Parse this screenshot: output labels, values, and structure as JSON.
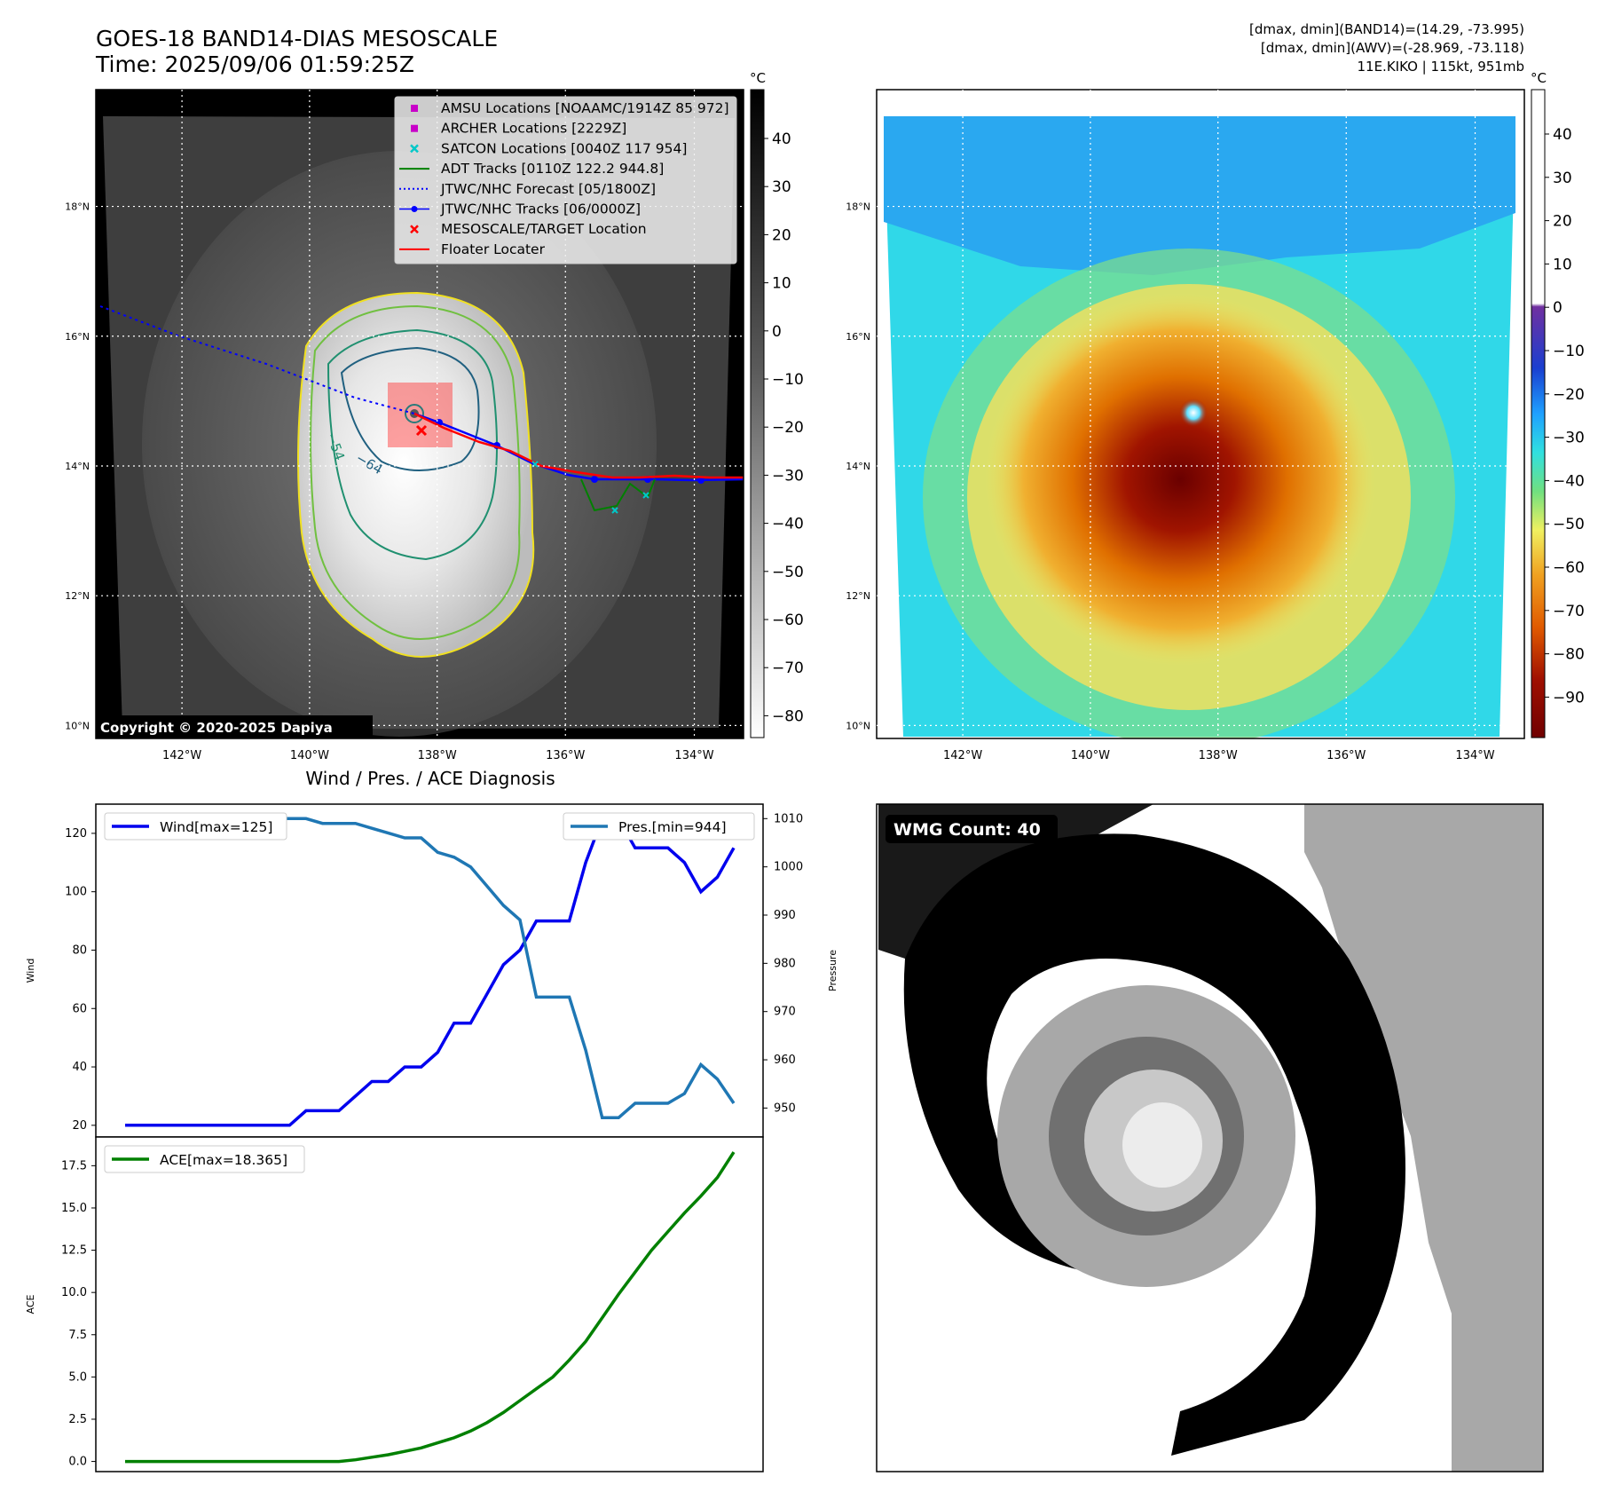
{
  "header": {
    "title_line1": "GOES-18 BAND14-DIAS MESOSCALE",
    "title_line2": "Time: 2025/09/06 01:59:25Z",
    "info_line1": "[dmax, dmin](BAND14)=(14.29, -73.995)",
    "info_line2": "[dmax, dmin](AWV)=(-28.969, -73.118)",
    "info_line3": "11E.KIKO | 115kt, 951mb"
  },
  "colors": {
    "wind": "#0000ee",
    "pressure": "#1f77b4",
    "ace": "#008000",
    "adt": "#008000",
    "forecast": "#0000ff",
    "floater": "#ff0000",
    "satcon": "#00c8c8",
    "amsu": "#c800c8",
    "contour_yellow": "#f0e020",
    "contour_green": "#70c040",
    "contour_teal": "#209070",
    "contour_dark": "#206080"
  },
  "map": {
    "lon_labels": [
      "142°W",
      "140°W",
      "138°W",
      "136°W",
      "134°W"
    ],
    "lat_labels": [
      "18°N",
      "16°N",
      "14°N",
      "12°N",
      "10°N"
    ],
    "unit": "°C",
    "copyright": "Copyright © 2020-2025 Dapiya",
    "contour_labels": [
      "−64",
      "−54"
    ],
    "legend": [
      {
        "label": "AMSU Locations [NOAAMC/1914Z 85 972]",
        "marker": "square",
        "color": "#c800c8"
      },
      {
        "label": "ARCHER Locations [2229Z]",
        "marker": "square",
        "color": "#c800c8"
      },
      {
        "label": "SATCON Locations [0040Z 117 954]",
        "marker": "x",
        "color": "#00c8c8"
      },
      {
        "label": "ADT Tracks [0110Z 122.2 944.8]",
        "marker": "line",
        "color": "#008000"
      },
      {
        "label": "JTWC/NHC Forecast [05/1800Z]",
        "marker": "dotted",
        "color": "#0000ff"
      },
      {
        "label": "JTWC/NHC Tracks [06/0000Z]",
        "marker": "linedot",
        "color": "#0000ff"
      },
      {
        "label": "MESOSCALE/TARGET Location",
        "marker": "x",
        "color": "#ff0000"
      },
      {
        "label": "Floater Locater",
        "marker": "line",
        "color": "#ff0000"
      }
    ],
    "gray_cbar_ticks": [
      "40",
      "30",
      "20",
      "10",
      "0",
      "−10",
      "−20",
      "−30",
      "−40",
      "−50",
      "−60",
      "−70",
      "−80"
    ],
    "color_cbar_ticks": [
      "40",
      "30",
      "20",
      "10",
      "0",
      "−10",
      "−20",
      "−30",
      "−40",
      "−50",
      "−60",
      "−70",
      "−80",
      "−90"
    ]
  },
  "wmg": {
    "label": "WMG Count: 40"
  },
  "chart_data": [
    {
      "type": "line",
      "title": "Wind / Pres. / ACE Diagnosis",
      "ylabel": "Wind",
      "ylabel_right": "Pressure",
      "ylim": [
        16,
        130
      ],
      "ylim_right": [
        944,
        1013
      ],
      "y_ticks": [
        20,
        40,
        60,
        80,
        100,
        120
      ],
      "y_ticks_right": [
        950,
        960,
        970,
        980,
        990,
        1000,
        1010
      ],
      "series": [
        {
          "name": "Wind[max=125]",
          "axis": "left",
          "values": [
            20,
            20,
            20,
            20,
            20,
            20,
            20,
            20,
            20,
            20,
            20,
            25,
            25,
            25,
            30,
            35,
            35,
            40,
            40,
            45,
            55,
            55,
            65,
            75,
            80,
            90,
            90,
            90,
            110,
            125,
            125,
            115,
            115,
            115,
            110,
            100,
            105,
            115
          ]
        },
        {
          "name": "Pres.[min=944]",
          "axis": "right",
          "values": [
            1010,
            1010,
            1010,
            1010,
            1010,
            1010,
            1010,
            1010,
            1010,
            1010,
            1010,
            1010,
            1009,
            1009,
            1009,
            1008,
            1007,
            1006,
            1006,
            1003,
            1002,
            1000,
            996,
            992,
            989,
            973,
            973,
            973,
            962,
            948,
            948,
            951,
            951,
            951,
            953,
            959,
            956,
            951
          ]
        }
      ]
    },
    {
      "type": "line",
      "ylabel": "ACE",
      "ylim": [
        -0.6,
        19.2
      ],
      "y_ticks": [
        0.0,
        2.5,
        5.0,
        7.5,
        10.0,
        12.5,
        15.0,
        17.5
      ],
      "series": [
        {
          "name": "ACE[max=18.365]",
          "values": [
            0,
            0,
            0,
            0,
            0,
            0,
            0,
            0,
            0,
            0,
            0,
            0,
            0,
            0,
            0.1,
            0.25,
            0.4,
            0.6,
            0.8,
            1.1,
            1.4,
            1.8,
            2.3,
            2.9,
            3.6,
            4.3,
            5.0,
            6.0,
            7.1,
            8.5,
            9.9,
            11.2,
            12.5,
            13.6,
            14.7,
            15.7,
            16.8,
            18.3
          ]
        }
      ]
    }
  ]
}
